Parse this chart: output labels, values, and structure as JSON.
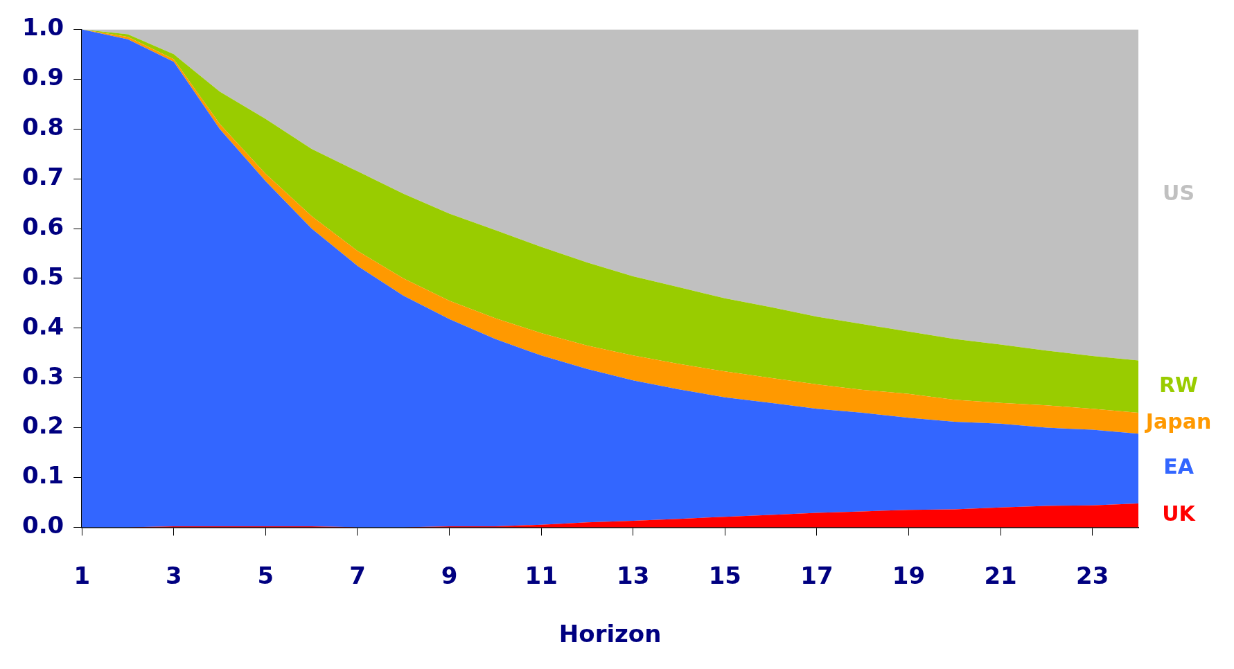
{
  "chart_data": {
    "type": "area",
    "stacked": true,
    "xlabel": "Horizon",
    "legend": false,
    "grid": false,
    "marker": "none",
    "x": [
      1,
      2,
      3,
      4,
      5,
      6,
      7,
      8,
      9,
      10,
      11,
      12,
      13,
      14,
      15,
      16,
      17,
      18,
      19,
      20,
      21,
      22,
      23,
      24
    ],
    "xlim": [
      1,
      24
    ],
    "xticks": [
      1,
      3,
      5,
      7,
      9,
      11,
      13,
      15,
      17,
      19,
      21,
      23
    ],
    "ylim": [
      0,
      1
    ],
    "yticks": [
      {
        "value": 0,
        "label": "0.0"
      },
      {
        "value": 0.1,
        "label": "0.1"
      },
      {
        "value": 0.2,
        "label": "0.2"
      },
      {
        "value": 0.3,
        "label": "0.3"
      },
      {
        "value": 0.4,
        "label": "0.4"
      },
      {
        "value": 0.5,
        "label": "0.5"
      },
      {
        "value": 0.6,
        "label": "0.6"
      },
      {
        "value": 0.7,
        "label": "0.7"
      },
      {
        "value": 0.8,
        "label": "0.8"
      },
      {
        "value": 0.9,
        "label": "0.9"
      },
      {
        "value": 1,
        "label": "1.0"
      }
    ],
    "series": [
      {
        "name": "UK",
        "color": "#ff0000",
        "values": [
          0,
          0,
          0.002,
          0.002,
          0.002,
          0.002,
          0,
          0,
          0.002,
          0.002,
          0.005,
          0.01,
          0.013,
          0.017,
          0.021,
          0.025,
          0.029,
          0.032,
          0.035,
          0.036,
          0.04,
          0.043,
          0.044,
          0.048
        ]
      },
      {
        "name": "EA",
        "color": "#3366ff",
        "values": [
          1,
          0.98,
          0.933,
          0.798,
          0.693,
          0.598,
          0.525,
          0.465,
          0.416,
          0.376,
          0.34,
          0.308,
          0.282,
          0.26,
          0.24,
          0.225,
          0.209,
          0.198,
          0.185,
          0.176,
          0.168,
          0.157,
          0.152,
          0.14
        ]
      },
      {
        "name": "Japan",
        "color": "#ff9900",
        "values": [
          0,
          0.005,
          0.005,
          0.01,
          0.015,
          0.025,
          0.03,
          0.035,
          0.037,
          0.042,
          0.045,
          0.047,
          0.05,
          0.051,
          0.052,
          0.05,
          0.049,
          0.046,
          0.048,
          0.044,
          0.042,
          0.045,
          0.042,
          0.042
        ]
      },
      {
        "name": "RW",
        "color": "#99cc00",
        "values": [
          0,
          0.005,
          0.01,
          0.065,
          0.11,
          0.135,
          0.16,
          0.17,
          0.175,
          0.177,
          0.173,
          0.167,
          0.159,
          0.154,
          0.147,
          0.142,
          0.136,
          0.132,
          0.125,
          0.122,
          0.117,
          0.11,
          0.106,
          0.105
        ]
      },
      {
        "name": "US",
        "color": "#c0c0c0",
        "values": [
          0,
          0.01,
          0.05,
          0.125,
          0.18,
          0.24,
          0.285,
          0.33,
          0.37,
          0.403,
          0.437,
          0.468,
          0.496,
          0.518,
          0.54,
          0.558,
          0.577,
          0.592,
          0.607,
          0.622,
          0.633,
          0.645,
          0.656,
          0.665
        ]
      }
    ]
  }
}
